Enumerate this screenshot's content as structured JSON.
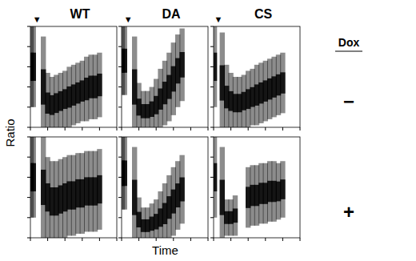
{
  "columns": [
    "WT",
    "DA",
    "CS"
  ],
  "rows": [
    "−",
    "+"
  ],
  "row_header": "Dox",
  "x_label": "Time",
  "y_label": "Ratio",
  "chart_data": [
    {
      "type": "scatter",
      "tick_labels": false,
      "xlim": [
        0,
        10
      ],
      "xticks": [
        0,
        2,
        4,
        6,
        8,
        10
      ],
      "ylim": [
        0,
        5
      ],
      "yticks": [
        0,
        1,
        2,
        3,
        4,
        5
      ],
      "annotations": [
        {
          "x": 0.75,
          "text": "▼"
        }
      ],
      "x": [
        0.1,
        0.35,
        1.5,
        2,
        2.5,
        3,
        3.5,
        4,
        4.5,
        5,
        5.5,
        6,
        6.5,
        7,
        7.5,
        8
      ],
      "series": [
        {
          "color": "#000000",
          "values": [
            3.0,
            3.0,
            2.0,
            1.2,
            1.1,
            1.2,
            1.3,
            1.4,
            1.5,
            1.6,
            1.7,
            1.8,
            1.9,
            2.0,
            2.0,
            2.1
          ],
          "spread": [
            2.0,
            2.0,
            2.5,
            1.5,
            1.4,
            1.4,
            1.4,
            1.4,
            1.5,
            1.5,
            1.5,
            1.5,
            1.6,
            1.6,
            1.6,
            1.6
          ]
        }
      ]
    },
    {
      "type": "scatter",
      "tick_labels": false,
      "xlim": [
        0,
        10
      ],
      "xticks": [
        0,
        2,
        4,
        6,
        8,
        10
      ],
      "ylim": [
        0,
        5
      ],
      "yticks": [
        0,
        1,
        2,
        3,
        4,
        5
      ],
      "annotations": [
        {
          "x": 0.75,
          "text": "▼"
        }
      ],
      "x": [
        0.1,
        0.35,
        1.5,
        2,
        2.5,
        3,
        3.5,
        4,
        4.5,
        5,
        5.5,
        6,
        6.5,
        7
      ],
      "series": [
        {
          "color": "#000000",
          "values": [
            3.3,
            3.3,
            2.0,
            1.0,
            0.8,
            0.8,
            0.9,
            1.1,
            1.4,
            1.7,
            2.0,
            2.4,
            2.8,
            3.1
          ],
          "spread": [
            1.7,
            1.7,
            2.5,
            1.2,
            1.0,
            1.0,
            1.1,
            1.3,
            1.5,
            1.6,
            1.7,
            1.8,
            1.8,
            1.8
          ]
        }
      ]
    },
    {
      "type": "scatter",
      "tick_labels": false,
      "xlim": [
        0,
        10
      ],
      "xticks": [
        0,
        2,
        4,
        6,
        8,
        10
      ],
      "ylim": [
        0,
        5
      ],
      "yticks": [
        0,
        1,
        2,
        3,
        4,
        5
      ],
      "annotations": [
        {
          "x": 0.55,
          "text": "▼"
        }
      ],
      "x": [
        0.1,
        1.0,
        1.5,
        2,
        2.5,
        3,
        3.5,
        4,
        4.5,
        5,
        5.5,
        6,
        6.5,
        7,
        7.5,
        8
      ],
      "series": [
        {
          "color": "#000000",
          "values": [
            3.0,
            2.2,
            1.5,
            1.3,
            1.2,
            1.2,
            1.3,
            1.4,
            1.5,
            1.6,
            1.7,
            1.8,
            1.9,
            2.0,
            2.1,
            2.2
          ],
          "spread": [
            2.0,
            2.5,
            1.6,
            1.4,
            1.3,
            1.3,
            1.3,
            1.4,
            1.4,
            1.5,
            1.5,
            1.5,
            1.5,
            1.5,
            1.5,
            1.5
          ]
        }
      ]
    },
    {
      "type": "scatter",
      "tick_labels": false,
      "xlim": [
        0,
        10
      ],
      "xticks": [
        0,
        2,
        4,
        6,
        8,
        10
      ],
      "ylim": [
        0,
        5
      ],
      "yticks": [
        0,
        1,
        2,
        3,
        4,
        5
      ],
      "x": [
        0.1,
        0.35,
        1.5,
        2,
        2.5,
        3,
        3.5,
        4,
        4.5,
        5,
        5.5,
        6,
        6.5,
        7,
        7.5,
        8
      ],
      "series": [
        {
          "color": "#000000",
          "values": [
            3.0,
            3.0,
            2.5,
            2.0,
            1.8,
            1.8,
            1.9,
            2.0,
            2.1,
            2.1,
            2.2,
            2.2,
            2.3,
            2.3,
            2.3,
            2.4
          ],
          "spread": [
            2.0,
            2.0,
            2.5,
            2.0,
            2.0,
            2.0,
            2.0,
            2.0,
            2.0,
            2.0,
            2.0,
            2.0,
            2.0,
            2.0,
            2.0,
            2.0
          ]
        }
      ]
    },
    {
      "type": "scatter",
      "tick_labels": false,
      "xlim": [
        0,
        10
      ],
      "xticks": [
        0,
        2,
        4,
        6,
        8,
        10
      ],
      "ylim": [
        0,
        5
      ],
      "yticks": [
        0,
        1,
        2,
        3,
        4,
        5
      ],
      "x": [
        0.1,
        0.35,
        1.5,
        2,
        2.5,
        3,
        3.5,
        4,
        4.5,
        5,
        5.5,
        6,
        6.5,
        7
      ],
      "series": [
        {
          "color": "#000000",
          "values": [
            3.2,
            3.2,
            2.0,
            0.9,
            0.6,
            0.6,
            0.7,
            0.8,
            1.0,
            1.2,
            1.5,
            1.8,
            2.1,
            2.4
          ],
          "spread": [
            1.8,
            1.8,
            2.5,
            1.1,
            0.9,
            0.9,
            1.0,
            1.1,
            1.3,
            1.5,
            1.6,
            1.7,
            1.7,
            1.7
          ]
        }
      ]
    },
    {
      "type": "scatter",
      "tick_labels": false,
      "xlim": [
        0,
        10
      ],
      "xticks": [
        0,
        2,
        4,
        6,
        8,
        10
      ],
      "ylim": [
        0,
        5
      ],
      "yticks": [
        0,
        1,
        2,
        3,
        4,
        5
      ],
      "x": [
        0.1,
        1.0,
        1.5,
        2,
        2.5,
        3,
        3.5,
        4,
        4.5,
        5,
        5.5,
        6,
        6.5,
        7,
        7.5,
        8
      ],
      "series": [
        {
          "color": "#000000",
          "values": [
            3.0,
            2.0,
            1.0,
            1.0,
            1.1,
            null,
            null,
            2.0,
            2.1,
            2.1,
            2.2,
            2.2,
            2.3,
            2.3,
            2.3,
            2.4
          ],
          "spread": [
            2.0,
            2.5,
            0.9,
            0.9,
            1.0,
            null,
            null,
            1.5,
            1.5,
            1.5,
            1.5,
            1.5,
            1.5,
            1.5,
            1.4,
            1.4
          ]
        }
      ]
    }
  ]
}
